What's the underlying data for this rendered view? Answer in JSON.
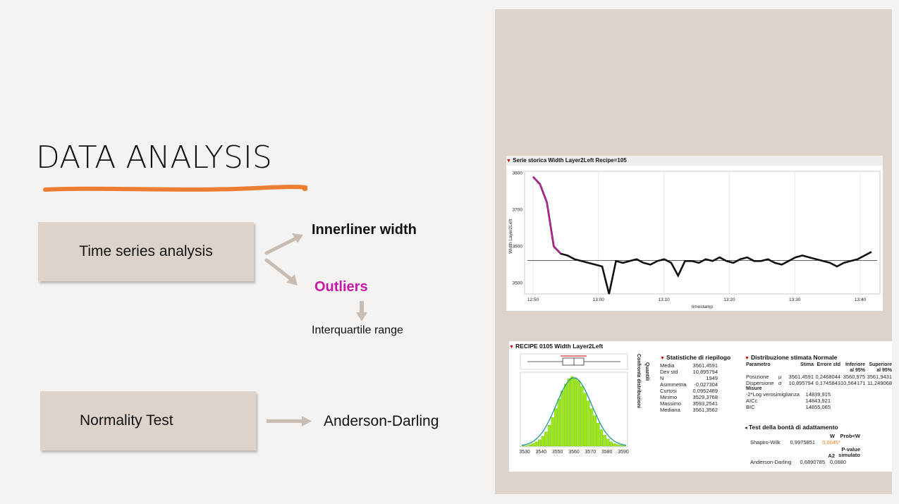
{
  "slide": {
    "title": "DATA ANALYSIS",
    "underline_color": "#ed7d31",
    "box_color": "#ddd3ca"
  },
  "flow": {
    "time_series": "Time series analysis",
    "innerliner": "Innerliner width",
    "outliers": "Outliers",
    "outliers_color": "#c716a8",
    "iqr": "Interquartile range",
    "normality": "Normality Test",
    "anderson": "Anderson-Darling"
  },
  "timeseries": {
    "header": "Serie storica Width Layer2Left Recipe=105",
    "ylabel": "Width Layer2Left",
    "xlabel": "timestamp",
    "yticks": [
      "3800",
      "3700",
      "3600",
      "3500"
    ],
    "xticks": [
      "12:50",
      "13:00",
      "13:10",
      "13:20",
      "13:30",
      "13:40"
    ]
  },
  "chart_data": [
    {
      "type": "line",
      "title": "Serie storica Width Layer2Left Recipe=105",
      "xlabel": "timestamp",
      "ylabel": "Width Layer2Left",
      "ylim": [
        3470,
        3805
      ],
      "x_ticks": [
        "12:50",
        "13:00",
        "13:10",
        "13:20",
        "13:30",
        "13:40"
      ],
      "series": [
        {
          "values": [
            3790,
            3770,
            3720,
            3600,
            3580,
            3575,
            3565,
            3560,
            3555,
            3550,
            3545,
            3470,
            3560,
            3555,
            3560,
            3565,
            3555,
            3550,
            3560,
            3565,
            3555,
            3520,
            3560,
            3560,
            3555,
            3565,
            3560,
            3570,
            3560,
            3555,
            3565,
            3570,
            3560,
            3560,
            3565,
            3555,
            3550,
            3560,
            3570,
            3575,
            3570,
            3565,
            3560,
            3555,
            3545,
            3555,
            3560,
            3565,
            3575,
            3585
          ]
        }
      ],
      "center_line": 3561.5
    },
    {
      "type": "bar",
      "title": "RECIPE 0105 Width Layer2Left",
      "x_ticks": [
        "3530",
        "3540",
        "3550",
        "3560",
        "3570",
        "3580",
        "3590"
      ],
      "categories": [
        "3530",
        "3532",
        "3534",
        "3536",
        "3538",
        "3540",
        "3542",
        "3544",
        "3546",
        "3548",
        "3550",
        "3552",
        "3554",
        "3556",
        "3558",
        "3560",
        "3562",
        "3564",
        "3566",
        "3568",
        "3570",
        "3572",
        "3574",
        "3576",
        "3578",
        "3580",
        "3582",
        "3584",
        "3586",
        "3588",
        "3590",
        "3592"
      ],
      "values": [
        1,
        1,
        3,
        5,
        8,
        12,
        18,
        26,
        38,
        52,
        68,
        85,
        100,
        112,
        122,
        126,
        124,
        118,
        108,
        96,
        82,
        68,
        55,
        42,
        30,
        20,
        13,
        8,
        5,
        3,
        2,
        1
      ]
    }
  ],
  "dist": {
    "header": "RECIPE 0105 Width Layer2Left",
    "quantili": "Quantili",
    "confronta": "Confronta distribuzioni",
    "stats_header": "Statistiche di riepilogo",
    "stats": [
      [
        "Media",
        "3561,4591"
      ],
      [
        "Dev std",
        "10,895794"
      ],
      [
        "N",
        "1949"
      ],
      [
        "Asimmetria",
        "-0,027304"
      ],
      [
        "Curtosi",
        "0,0952489"
      ],
      [
        "Minimo",
        "3529,3768"
      ],
      [
        "Massimo",
        "3593,2541"
      ],
      [
        "Mediana",
        "3561,3562"
      ]
    ],
    "normal_header": "Distribuzione stimata Normale",
    "param_cols": [
      "Parametro",
      "Stima",
      "Errore std",
      "Inferiore al 95%",
      "Superiore al 95%"
    ],
    "param_rows": [
      [
        "Posizione",
        "μ",
        "3561,4591",
        "0,2468044",
        "3560,975",
        "3561,9431"
      ],
      [
        "Dispersione",
        "σ",
        "10,895794",
        "0,1745843",
        "10,564171",
        "11,249068"
      ]
    ],
    "misure_label": "Misure",
    "misure": [
      [
        "-2*Log verosimiglianza",
        "14839,915"
      ],
      [
        "AICc",
        "14843,921"
      ],
      [
        "BIC",
        "14855,065"
      ]
    ],
    "gof_header": "Test della bontà di adattamento",
    "sw": {
      "col1": "W",
      "col2": "Prob<W",
      "name": "Shapiro-Wilk",
      "w": "0,9975851",
      "p": "0,0045*"
    },
    "ad": {
      "col1": "A2",
      "col2": "P-value simulato",
      "name": "Anderson-Darling",
      "a2": "0,6890785",
      "p": "0,0680"
    }
  }
}
